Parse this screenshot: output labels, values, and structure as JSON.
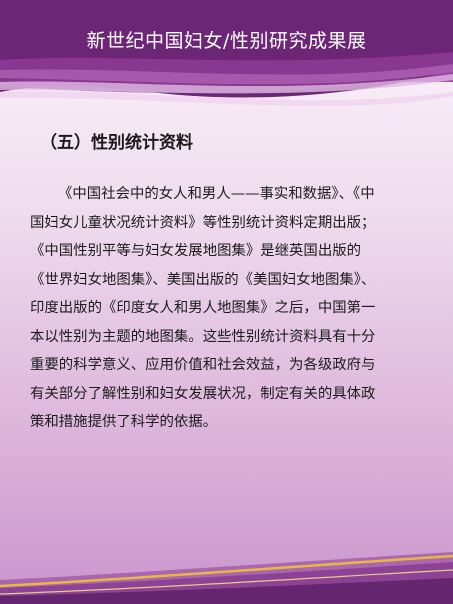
{
  "header": {
    "title": "新世纪中国妇女/性别研究成果展"
  },
  "section": {
    "title": "（五）性别统计资料"
  },
  "body": {
    "lines": [
      "《中国社会中的女人和男人——事实和数据》、《中",
      "国妇女儿童状况统计资料》等性别统计资料定期出版；",
      "《中国性别平等与妇女发展地图集》是继英国出版的",
      "《世界妇女地图集》、美国出版的《美国妇女地图集》、",
      "印度出版的《印度女人和男人地图集》之后，中国第一",
      "本以性别为主题的地图集。这些性别统计资料具有十分",
      "重要的科学意义、应用价值和社会效益，为各级政府与",
      "有关部分了解性别和妇女发展状况，制定有关的具体政",
      "策和措施提供了科学的依据。"
    ]
  },
  "colors": {
    "header": "#7c2c83",
    "accent_gold": "#e9b840",
    "background_light": "#fbf6fb",
    "background_dark": "#c995cc"
  }
}
